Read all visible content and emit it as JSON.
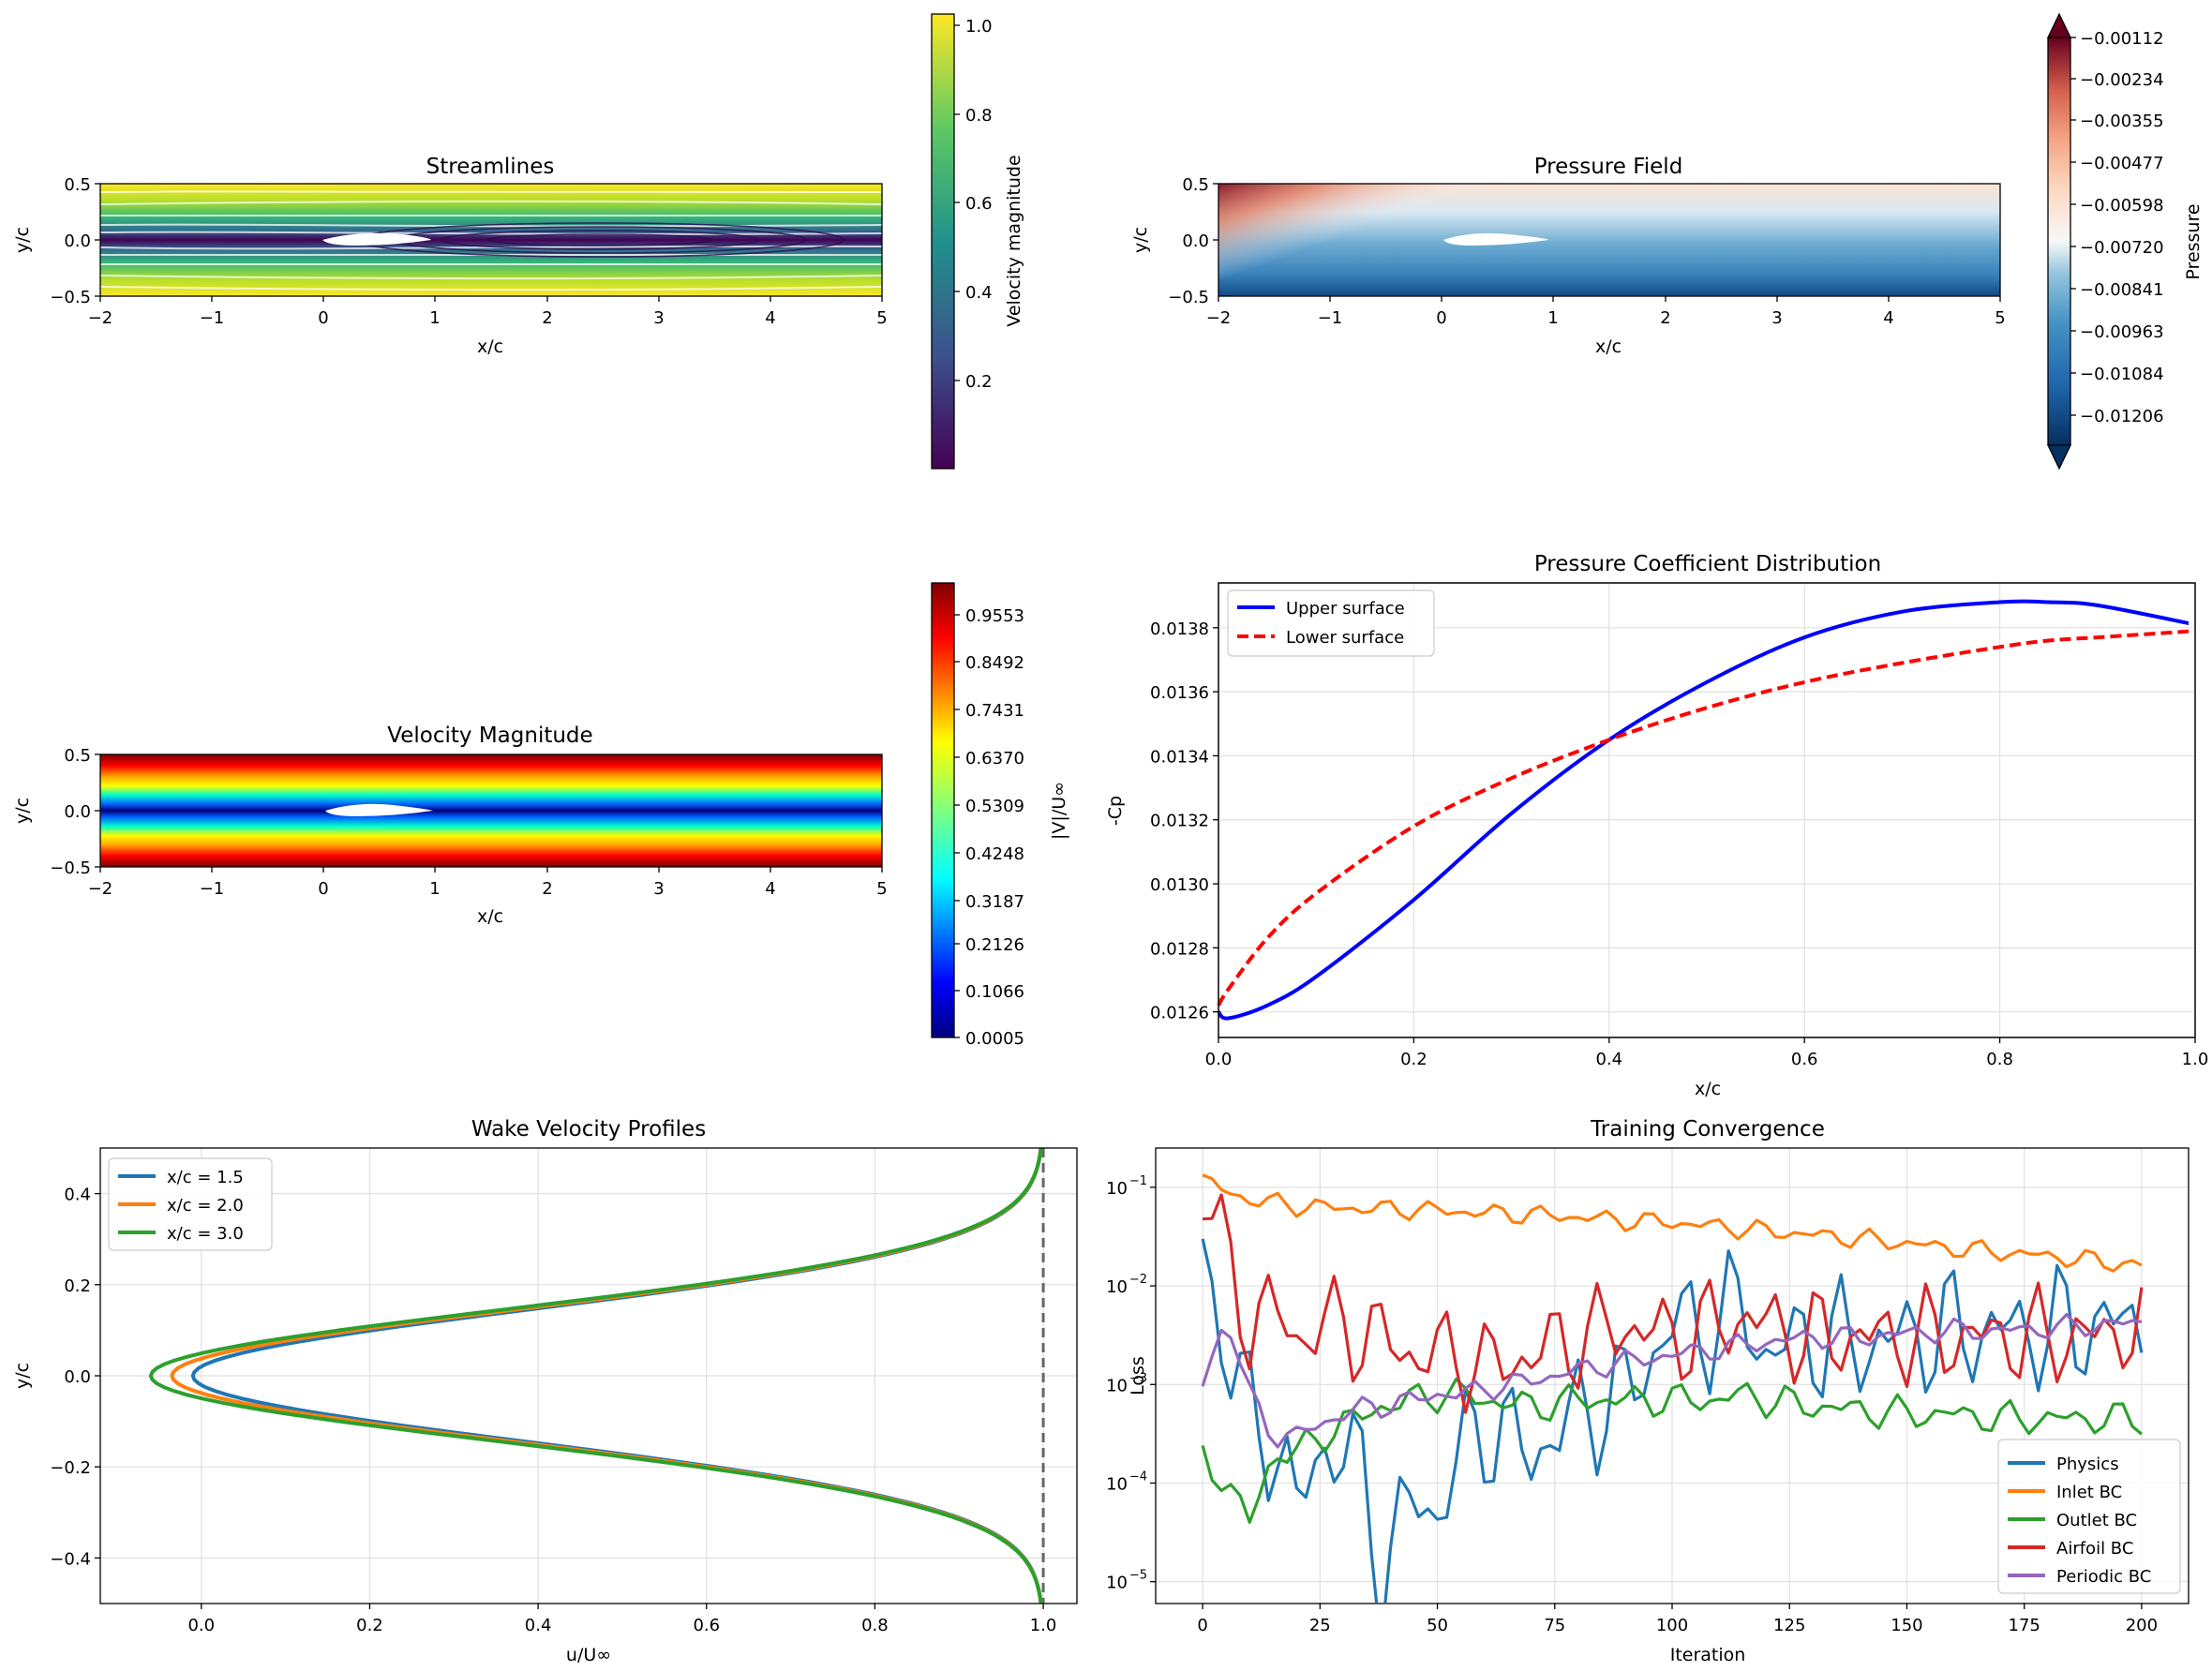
{
  "chart_data": [
    {
      "type": "heatmap",
      "title": "Streamlines",
      "xlabel": "x/c",
      "ylabel": "y/c",
      "xlim": [
        -2,
        5
      ],
      "ylim": [
        -0.5,
        0.5
      ],
      "x_ticks": [
        "−2",
        "−1",
        "0",
        "1",
        "2",
        "3",
        "4",
        "5"
      ],
      "y_ticks": [
        "0.5",
        "0.0",
        "−0.5"
      ],
      "colorbar": {
        "label": "Velocity magnitude",
        "range": [
          0.01,
          1.02
        ],
        "colormap": "viridis",
        "ticks": [
          "1.0",
          "0.8",
          "0.6",
          "0.4",
          "0.2"
        ]
      }
    },
    {
      "type": "heatmap",
      "title": "Pressure Field",
      "xlabel": "x/c",
      "ylabel": "y/c",
      "xlim": [
        -2,
        5
      ],
      "ylim": [
        -0.5,
        0.5
      ],
      "x_ticks": [
        "−2",
        "−1",
        "0",
        "1",
        "2",
        "3",
        "4",
        "5"
      ],
      "y_ticks": [
        "0.5",
        "0.0",
        "−0.5"
      ],
      "colorbar": {
        "label": "Pressure",
        "colormap": "RdBu_r",
        "extend": "both",
        "ticks": [
          "−0.00112",
          "−0.00234",
          "−0.00355",
          "−0.00477",
          "−0.00598",
          "−0.00720",
          "−0.00841",
          "−0.00963",
          "−0.01084",
          "−0.01206"
        ]
      }
    },
    {
      "type": "heatmap",
      "title": "Velocity Magnitude",
      "xlabel": "x/c",
      "ylabel": "y/c",
      "xlim": [
        -2,
        5
      ],
      "ylim": [
        -0.5,
        0.5
      ],
      "x_ticks": [
        "−2",
        "−1",
        "0",
        "1",
        "2",
        "3",
        "4",
        "5"
      ],
      "y_ticks": [
        "0.5",
        "0.0",
        "−0.5"
      ],
      "colorbar": {
        "label": "|V|/U∞",
        "colormap": "jet",
        "range": [
          0.0005,
          1.0084
        ],
        "ticks": [
          "0.9553",
          "0.8492",
          "0.7431",
          "0.6370",
          "0.5309",
          "0.4248",
          "0.3187",
          "0.2126",
          "0.1066",
          "0.0005"
        ]
      }
    },
    {
      "type": "line",
      "title": "Pressure Coefficient Distribution",
      "xlabel": "x/c",
      "ylabel": "-Cp",
      "xlim": [
        0,
        1
      ],
      "ylim": [
        0.01252,
        0.01394
      ],
      "grid": true,
      "legend": "top-left",
      "x_ticks": [
        "0.0",
        "0.2",
        "0.4",
        "0.6",
        "0.8",
        "1.0"
      ],
      "y_ticks": [
        "0.0126",
        "0.0128",
        "0.0130",
        "0.0132",
        "0.0134",
        "0.0136",
        "0.0138"
      ],
      "x": [
        0,
        0.01,
        0.05,
        0.1,
        0.2,
        0.3,
        0.4,
        0.5,
        0.6,
        0.7,
        0.8,
        0.85,
        0.9,
        1.0
      ],
      "series": [
        {
          "name": "Upper surface",
          "color": "#0000ff",
          "style": "solid",
          "values": [
            0.0126,
            0.01258,
            0.01262,
            0.01271,
            0.01295,
            0.01322,
            0.01345,
            0.01363,
            0.01377,
            0.01385,
            0.01388,
            0.01388,
            0.01387,
            0.01381
          ]
        },
        {
          "name": "Lower surface",
          "color": "#ff0000",
          "style": "dashed",
          "values": [
            0.01262,
            0.01267,
            0.01283,
            0.01297,
            0.01318,
            0.01333,
            0.01345,
            0.01355,
            0.01363,
            0.01369,
            0.01374,
            0.01376,
            0.01377,
            0.01379
          ]
        }
      ]
    },
    {
      "type": "line",
      "title": "Wake Velocity Profiles",
      "xlabel": "u/U∞",
      "ylabel": "y/c",
      "xlim": [
        -0.12,
        1.04
      ],
      "ylim": [
        -0.5,
        0.5
      ],
      "grid": true,
      "legend": "top-left",
      "x_ticks": [
        "0.0",
        "0.2",
        "0.4",
        "0.6",
        "0.8",
        "1.0"
      ],
      "y_ticks": [
        "0.4",
        "0.2",
        "0.0",
        "−0.2",
        "−0.4"
      ],
      "reference_line": {
        "x": 1.0,
        "style": "dashed",
        "color": "#666666"
      },
      "series": [
        {
          "name": "x/c = 1.5",
          "color": "#1f77b4",
          "min_u": -0.01
        },
        {
          "name": "x/c = 2.0",
          "color": "#ff7f0e",
          "min_u": -0.035
        },
        {
          "name": "x/c = 3.0",
          "color": "#2ca02c",
          "min_u": -0.06
        }
      ]
    },
    {
      "type": "line",
      "title": "Training Convergence",
      "xlabel": "Iteration",
      "ylabel": "Loss",
      "xlim": [
        -10,
        210
      ],
      "ylim": [
        6e-06,
        0.25
      ],
      "yscale": "log",
      "grid": true,
      "legend": "bottom-right",
      "x_ticks": [
        "0",
        "25",
        "50",
        "75",
        "100",
        "125",
        "150",
        "175",
        "200"
      ],
      "y_ticks": [
        "10",
        "10",
        "10",
        "10",
        "10"
      ],
      "y_tick_exponents": [
        "−1",
        "−2",
        "−3",
        "−4",
        "−5"
      ],
      "y_tick_values": [
        0.1,
        0.01,
        0.001,
        0.0001,
        1e-05
      ],
      "x": [
        0,
        5,
        10,
        15,
        20,
        25,
        30,
        35,
        38,
        45,
        50,
        55,
        60,
        70,
        80,
        90,
        100,
        110,
        115,
        120,
        130,
        140,
        150,
        160,
        170,
        180,
        190,
        200
      ],
      "series": [
        {
          "name": "Physics",
          "color": "#1f77b4",
          "values": [
            0.03,
            0.002,
            0.0005,
            0.0003,
            5e-05,
            0.00025,
            0.0002,
            0.0001,
            1e-05,
            8e-05,
            5e-05,
            0.0002,
            0.0004,
            0.0002,
            0.0005,
            0.0008,
            0.004,
            0.004,
            0.007,
            0.002,
            0.003,
            0.0025,
            0.003,
            0.0035,
            0.0035,
            0.0035,
            0.004,
            0.004
          ]
        },
        {
          "name": "Inlet BC",
          "color": "#ff7f0e",
          "values": [
            0.12,
            0.09,
            0.075,
            0.07,
            0.065,
            0.063,
            0.062,
            0.061,
            0.06,
            0.06,
            0.058,
            0.057,
            0.055,
            0.053,
            0.05,
            0.046,
            0.044,
            0.04,
            0.038,
            0.036,
            0.033,
            0.03,
            0.027,
            0.024,
            0.022,
            0.02,
            0.018,
            0.016
          ]
        },
        {
          "name": "Outlet BC",
          "color": "#2ca02c",
          "values": [
            0.0002,
            0.0001,
            4e-05,
            0.0002,
            0.0002,
            0.0003,
            0.0004,
            0.0005,
            0.0006,
            0.0007,
            0.0008,
            0.0008,
            0.0007,
            0.0006,
            0.0007,
            0.0007,
            0.0007,
            0.0007,
            0.0008,
            0.0007,
            0.0006,
            0.00055,
            0.0005,
            0.0005,
            0.00045,
            0.00045,
            0.00045,
            0.00045
          ]
        },
        {
          "name": "Airfoil BC",
          "color": "#d62728",
          "values": [
            0.1,
            0.02,
            0.004,
            0.006,
            0.003,
            0.004,
            0.004,
            0.003,
            0.003,
            0.002,
            0.002,
            0.002,
            0.0015,
            0.002,
            0.003,
            0.004,
            0.003,
            0.004,
            0.005,
            0.004,
            0.003,
            0.003,
            0.003,
            0.003,
            0.003,
            0.003,
            0.003,
            0.004
          ]
        },
        {
          "name": "Periodic BC",
          "color": "#9467bd",
          "values": [
            0.001,
            0.005,
            0.0008,
            0.0003,
            0.0003,
            0.0004,
            0.0005,
            0.0006,
            0.0006,
            0.0007,
            0.0008,
            0.0008,
            0.0009,
            0.0011,
            0.0014,
            0.0017,
            0.002,
            0.0023,
            0.0025,
            0.0027,
            0.003,
            0.003,
            0.0033,
            0.0035,
            0.0035,
            0.0037,
            0.004,
            0.0042
          ]
        }
      ]
    }
  ]
}
